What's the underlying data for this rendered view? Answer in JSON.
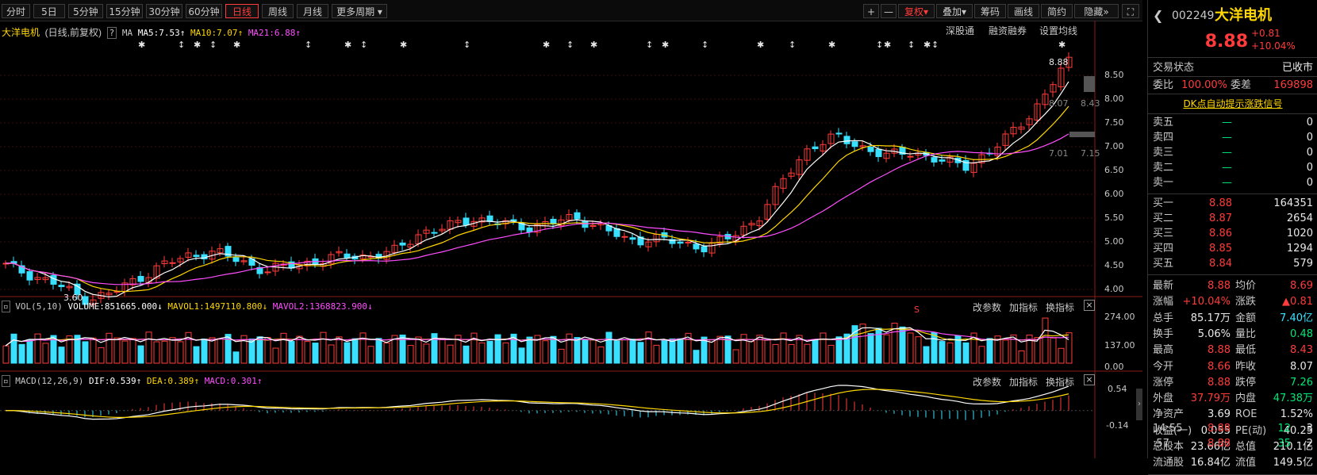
{
  "toolbar": {
    "periods": [
      "分时",
      "5日",
      "5分钟",
      "15分钟",
      "30分钟",
      "60分钟",
      "日线",
      "周线",
      "月线",
      "更多周期"
    ],
    "active": "日线",
    "right_buttons": [
      "+",
      "—",
      "复权",
      "叠加",
      "筹码",
      "画线",
      "简约",
      "隐藏"
    ],
    "fq_label": "复权"
  },
  "main": {
    "stock_title": "大洋电机",
    "mode": "(日线,前复权)",
    "help": "?",
    "ma_label": "MA",
    "ma5": "MA5:7.53",
    "ma10": "MA10:7.07",
    "ma21": "MA21:6.88",
    "links": [
      "深股通",
      "融资融券",
      "设置均线"
    ],
    "price_ticks": [
      "8.50",
      "8.00",
      "7.50",
      "7.00",
      "6.50",
      "6.00",
      "5.50",
      "5.00",
      "4.50",
      "4.00"
    ],
    "high_tag": "8.88",
    "mid_tag": "8.07",
    "mid_tag2": "8.43",
    "low_tag": "7.01",
    "low_tag2": "7.15",
    "min_tag": "3.60",
    "s_mark": "S"
  },
  "vol": {
    "label": "VOL(5,10)",
    "volume": "VOLUME:851665.000",
    "mavol1": "MAVOL1:1497110.800",
    "mavol2": "MAVOL2:1368823.900",
    "ticks": [
      "274.00",
      "137.00",
      "0.00"
    ],
    "buttons": [
      "改参数",
      "加指标",
      "换指标"
    ]
  },
  "macd": {
    "label": "MACD(12,26,9)",
    "dif": "DIF:0.539",
    "dea": "DEA:0.389",
    "macd": "MACD:0.301",
    "ticks": [
      "0.54",
      "-0.14"
    ],
    "buttons": [
      "改参数",
      "加指标",
      "换指标"
    ]
  },
  "panel": {
    "code": "002249",
    "name": "大洋电机",
    "price": "8.88",
    "chg": "+0.81",
    "pct": "+10.04%",
    "status_label": "交易状态",
    "status": "已收市",
    "wb_label": "委比",
    "wb": "100.00%",
    "wc_label": "委差",
    "wc": "169898",
    "dk": "DK点自动提示涨跌信号",
    "asks": [
      {
        "label": "卖五",
        "price": "—",
        "vol": "0"
      },
      {
        "label": "卖四",
        "price": "—",
        "vol": "0"
      },
      {
        "label": "卖三",
        "price": "—",
        "vol": "0"
      },
      {
        "label": "卖二",
        "price": "—",
        "vol": "0"
      },
      {
        "label": "卖一",
        "price": "—",
        "vol": "0"
      }
    ],
    "bids": [
      {
        "label": "买一",
        "price": "8.88",
        "vol": "164351"
      },
      {
        "label": "买二",
        "price": "8.87",
        "vol": "2654"
      },
      {
        "label": "买三",
        "price": "8.86",
        "vol": "1020"
      },
      {
        "label": "买四",
        "price": "8.85",
        "vol": "1294"
      },
      {
        "label": "买五",
        "price": "8.84",
        "vol": "579"
      }
    ],
    "stats": [
      {
        "k1": "最新",
        "v1": "8.88",
        "c1": "red",
        "k2": "均价",
        "v2": "8.69",
        "c2": "red"
      },
      {
        "k1": "涨幅",
        "v1": "+10.04%",
        "c1": "red",
        "k2": "涨跌",
        "v2": "▲0.81",
        "c2": "red"
      },
      {
        "k1": "总手",
        "v1": "85.17万",
        "c1": "white",
        "k2": "金额",
        "v2": "7.40亿",
        "c2": "cyan"
      },
      {
        "k1": "换手",
        "v1": "5.06%",
        "c1": "white",
        "k2": "量比",
        "v2": "0.48",
        "c2": "green"
      },
      {
        "k1": "最高",
        "v1": "8.88",
        "c1": "red",
        "k2": "最低",
        "v2": "8.43",
        "c2": "red"
      },
      {
        "k1": "今开",
        "v1": "8.66",
        "c1": "red",
        "k2": "昨收",
        "v2": "8.07",
        "c2": "white"
      },
      {
        "k1": "涨停",
        "v1": "8.88",
        "c1": "red",
        "k2": "跌停",
        "v2": "7.26",
        "c2": "green"
      },
      {
        "k1": "外盘",
        "v1": "37.79万",
        "c1": "red",
        "k2": "内盘",
        "v2": "47.38万",
        "c2": "green"
      },
      {
        "k1": "净资产",
        "v1": "3.69",
        "c1": "white",
        "k2": "ROE",
        "v2": "1.52%",
        "c2": "white"
      },
      {
        "k1": "收益(一)",
        "v1": "0.055",
        "c1": "white",
        "k2": "PE(动)",
        "v2": "40.25",
        "c2": "white"
      },
      {
        "k1": "总股本",
        "v1": "23.66亿",
        "c1": "white",
        "k2": "总值",
        "v2": "210.1亿",
        "c2": "white"
      },
      {
        "k1": "流通股",
        "v1": "16.84亿",
        "c1": "white",
        "k2": "流值",
        "v2": "149.5亿",
        "c2": "white"
      }
    ],
    "ticks": [
      {
        "time": "14:55",
        "price": "8.88",
        "vol": "12",
        "n": "3"
      },
      {
        "time": ":57",
        "price": "8.88",
        "vol": "35",
        "n": "2"
      }
    ]
  },
  "colors": {
    "up": "#ff3b3b",
    "down": "#39e0ff",
    "ma5": "#ffffff",
    "ma10": "#ffd700",
    "ma21": "#ff4dff"
  }
}
